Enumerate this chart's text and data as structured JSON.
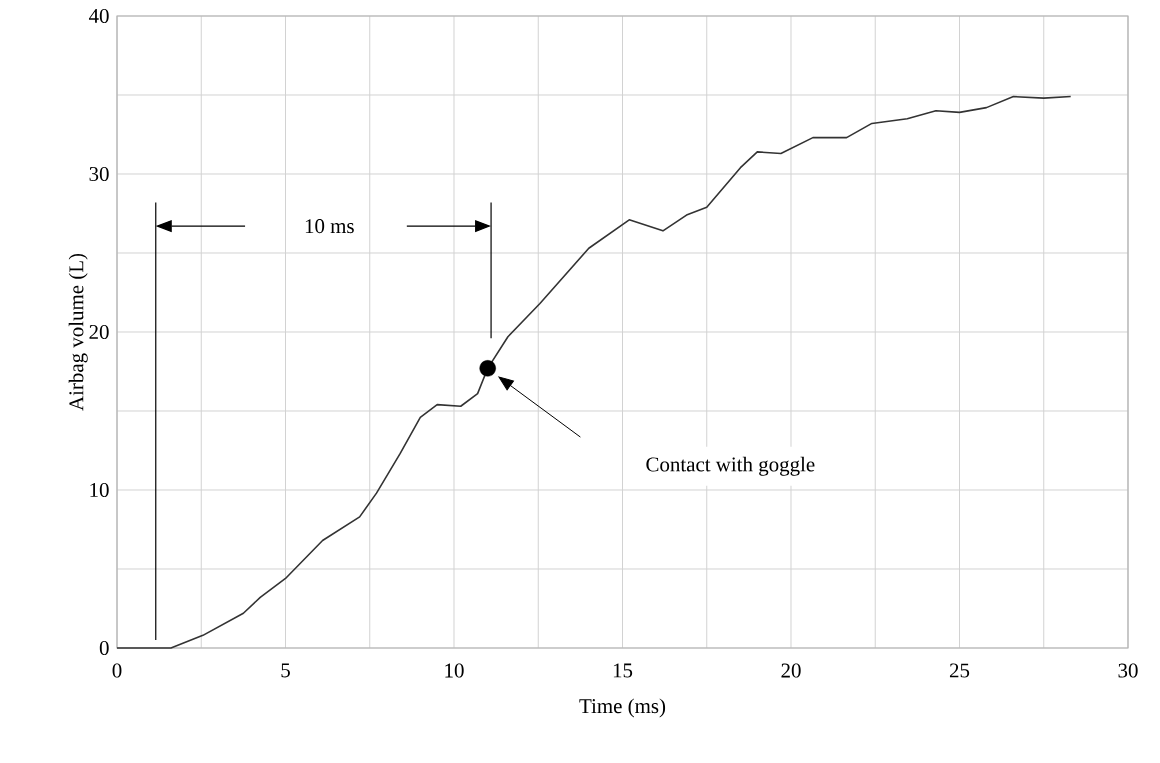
{
  "chart_data": {
    "type": "line",
    "xlabel": "Time (ms)",
    "ylabel": "Airbag volume (L)",
    "x": [
      0,
      1.6,
      2.55,
      3.75,
      4.25,
      5.0,
      6.1,
      7.2,
      7.7,
      8.4,
      9.0,
      9.5,
      10.2,
      10.7,
      11.0,
      11.6,
      12.55,
      14.0,
      15.2,
      16.2,
      16.9,
      17.5,
      18.5,
      19.0,
      19.7,
      20.65,
      21.65,
      22.4,
      23.45,
      24.3,
      25.0,
      25.8,
      26.6,
      27.5,
      28.3
    ],
    "series": [
      {
        "type": "scatter",
        "marker": "circle",
        "color": "#000000",
        "x": [
          11.0
        ],
        "values": [
          17.7
        ]
      },
      {
        "marker": "none",
        "color": "#333333",
        "values": [
          0,
          0,
          0.8,
          2.2,
          3.2,
          4.4,
          6.8,
          8.3,
          9.8,
          12.3,
          14.6,
          15.4,
          15.3,
          16.1,
          17.7,
          19.7,
          21.8,
          25.3,
          27.1,
          26.4,
          27.4,
          27.9,
          30.4,
          31.4,
          31.3,
          32.3,
          32.3,
          33.2,
          33.5,
          34.0,
          33.9,
          34.2,
          34.9,
          34.8,
          34.9
        ]
      }
    ],
    "xlim": [
      0,
      30
    ],
    "ylim": [
      0,
      40
    ],
    "xticks": [
      0,
      5,
      10,
      15,
      20,
      25,
      30
    ],
    "yticks": [
      0,
      10,
      20,
      30,
      40
    ],
    "grid": true,
    "line_style": "solid",
    "ref_lines": [
      {
        "axis": "x",
        "value": 1.15,
        "color": "#000000"
      },
      {
        "axis": "x",
        "value": 11.1,
        "color": "#000000"
      }
    ],
    "annotations": [
      "10 ms",
      "Contact with goggle"
    ]
  }
}
